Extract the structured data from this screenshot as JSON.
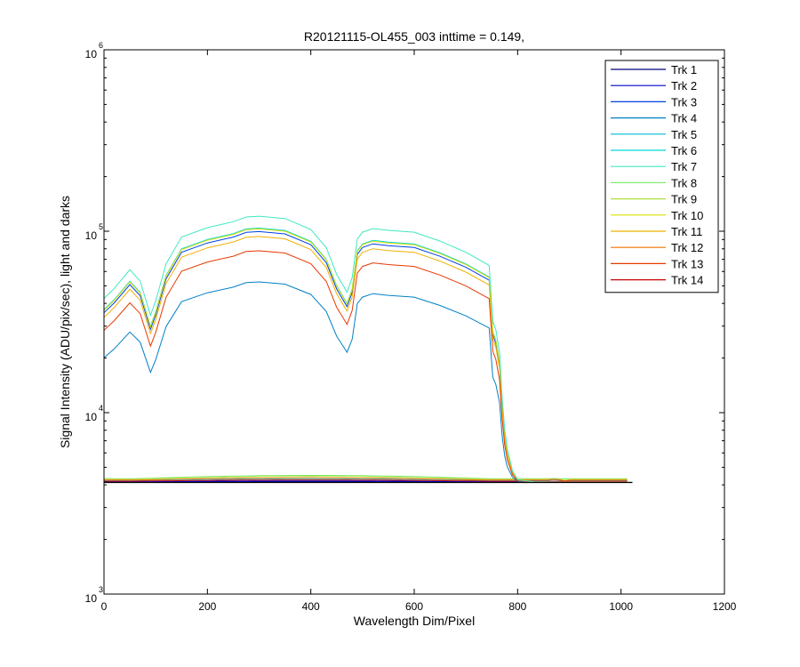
{
  "chart_data": {
    "type": "line",
    "title": "R20121115-OL455_003 inttime = 0.149,",
    "xlabel": "Wavelength Dim/Pixel",
    "ylabel": "Signal Intensity (ADU/pix/sec), light and darks",
    "xlim": [
      0,
      1200
    ],
    "ylim": [
      1000,
      1000000
    ],
    "yscale": "log",
    "xticks": [
      0,
      200,
      400,
      600,
      800,
      1000,
      1200
    ],
    "xtick_labels": [
      "0",
      "200",
      "400",
      "600",
      "800",
      "1000",
      "1200"
    ],
    "yticks": [
      {
        "base": "10",
        "exp": "3",
        "value": 1000
      },
      {
        "base": "10",
        "exp": "4",
        "value": 10000
      },
      {
        "base": "10",
        "exp": "5",
        "value": 100000
      },
      {
        "base": "10",
        "exp": "6",
        "value": 1000000
      }
    ],
    "legend_position": "top-right",
    "grid": false,
    "legend": [
      "Trk 1",
      "Trk 2",
      "Trk 3",
      "Trk 4",
      "Trk 5",
      "Trk 6",
      "Trk 7",
      "Trk 8",
      "Trk 9",
      "Trk 10",
      "Trk 11",
      "Trk 12",
      "Trk 13",
      "Trk 14"
    ],
    "colors": [
      "#000080",
      "#0000cc",
      "#0040e0",
      "#0080c8",
      "#00bcd8",
      "#00d8d8",
      "#40e8c0",
      "#80ec70",
      "#b0e040",
      "#dce000",
      "#f0b000",
      "#f07000",
      "#e83800",
      "#c80000"
    ],
    "light_base": {
      "x": [
        0,
        20,
        50,
        70,
        90,
        100,
        120,
        150,
        200,
        250,
        275,
        300,
        350,
        400,
        430,
        450,
        470,
        480,
        490,
        500,
        520,
        550,
        600,
        650,
        700,
        745,
        752,
        758,
        765,
        770,
        775,
        780,
        790,
        800,
        830,
        900,
        1022
      ],
      "y": [
        37000,
        42000,
        53000,
        46000,
        30000,
        36000,
        57000,
        80000,
        90000,
        97000,
        103000,
        104000,
        101000,
        88000,
        70000,
        50000,
        40000,
        48000,
        78000,
        85000,
        89000,
        87000,
        85000,
        76000,
        66000,
        56000,
        28000,
        25000,
        19000,
        11000,
        7500,
        6000,
        4700,
        4250,
        4150,
        4130,
        4130
      ]
    },
    "light_series": [
      {
        "track": "Trk 4",
        "color": "#0080c8",
        "scale": 0.485
      },
      {
        "track": "Trk 6",
        "color": "#00d8d8",
        "scale": 1.0
      },
      {
        "track": "Trk 3",
        "color": "#0040e0",
        "scale": 0.955
      },
      {
        "track": "Trk 10",
        "color": "#dce000",
        "scale": 0.99
      },
      {
        "track": "Trk 11",
        "color": "#f0b000",
        "scale": 0.895
      },
      {
        "track": "Trk 13",
        "color": "#e83800",
        "scale": 0.74
      },
      {
        "track": "Trk 7",
        "color": "#40e8c0",
        "scale": 1.17
      }
    ],
    "dark_series": [
      {
        "track": "Trk 1",
        "color": "#000080",
        "level": 4140
      },
      {
        "track": "Trk 2",
        "color": "#0000cc",
        "level": 4160
      },
      {
        "track": "Trk 5",
        "color": "#00bcd8",
        "level": 4230
      },
      {
        "track": "Trk 8",
        "color": "#80ec70",
        "level": 4330
      },
      {
        "track": "Trk 9",
        "color": "#b0e040",
        "level": 4300
      },
      {
        "track": "Trk 12",
        "color": "#f07000",
        "level": 4250
      },
      {
        "track": "Trk 14",
        "color": "#c80000",
        "level": 4190
      }
    ]
  }
}
